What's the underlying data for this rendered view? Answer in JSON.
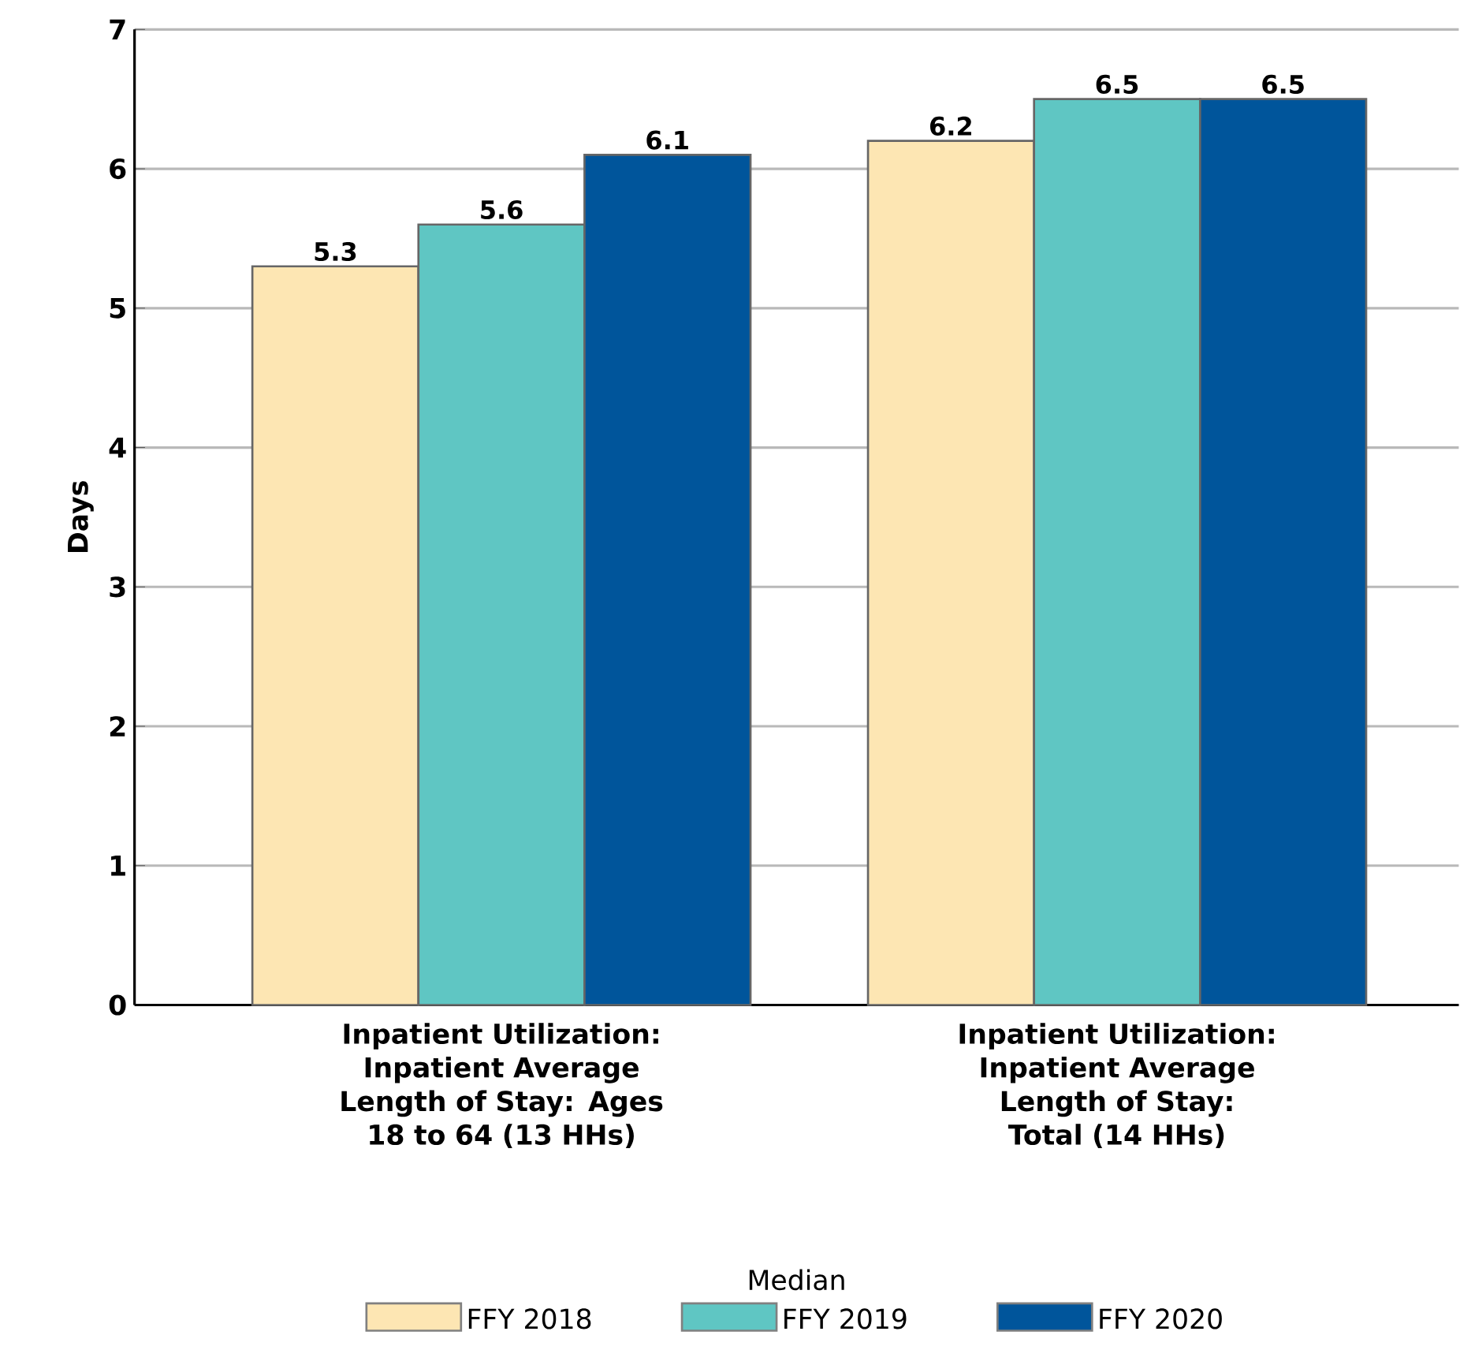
{
  "chart_data": {
    "type": "bar",
    "ylabel": "Days",
    "legend_title": "Median",
    "categories": [
      "Inpatient Utilization: Inpatient Average Length of Stay: Ages 18 to 64 (13 HHs)",
      "Inpatient Utilization: Inpatient Average Length of Stay: Total (14 HHs)"
    ],
    "series": [
      {
        "name": "FFY 2018",
        "color": "#fde6b3",
        "values": [
          5.3,
          6.2
        ]
      },
      {
        "name": "FFY 2019",
        "color": "#5fc6c3",
        "values": [
          5.6,
          6.5
        ]
      },
      {
        "name": "FFY 2020",
        "color": "#00559b",
        "values": [
          6.1,
          6.5
        ]
      }
    ],
    "ylim": [
      0,
      7
    ],
    "yticks": [
      0,
      1,
      2,
      3,
      4,
      5,
      6,
      7
    ],
    "grid": "y",
    "legend": "bottom",
    "data_labels": true
  }
}
